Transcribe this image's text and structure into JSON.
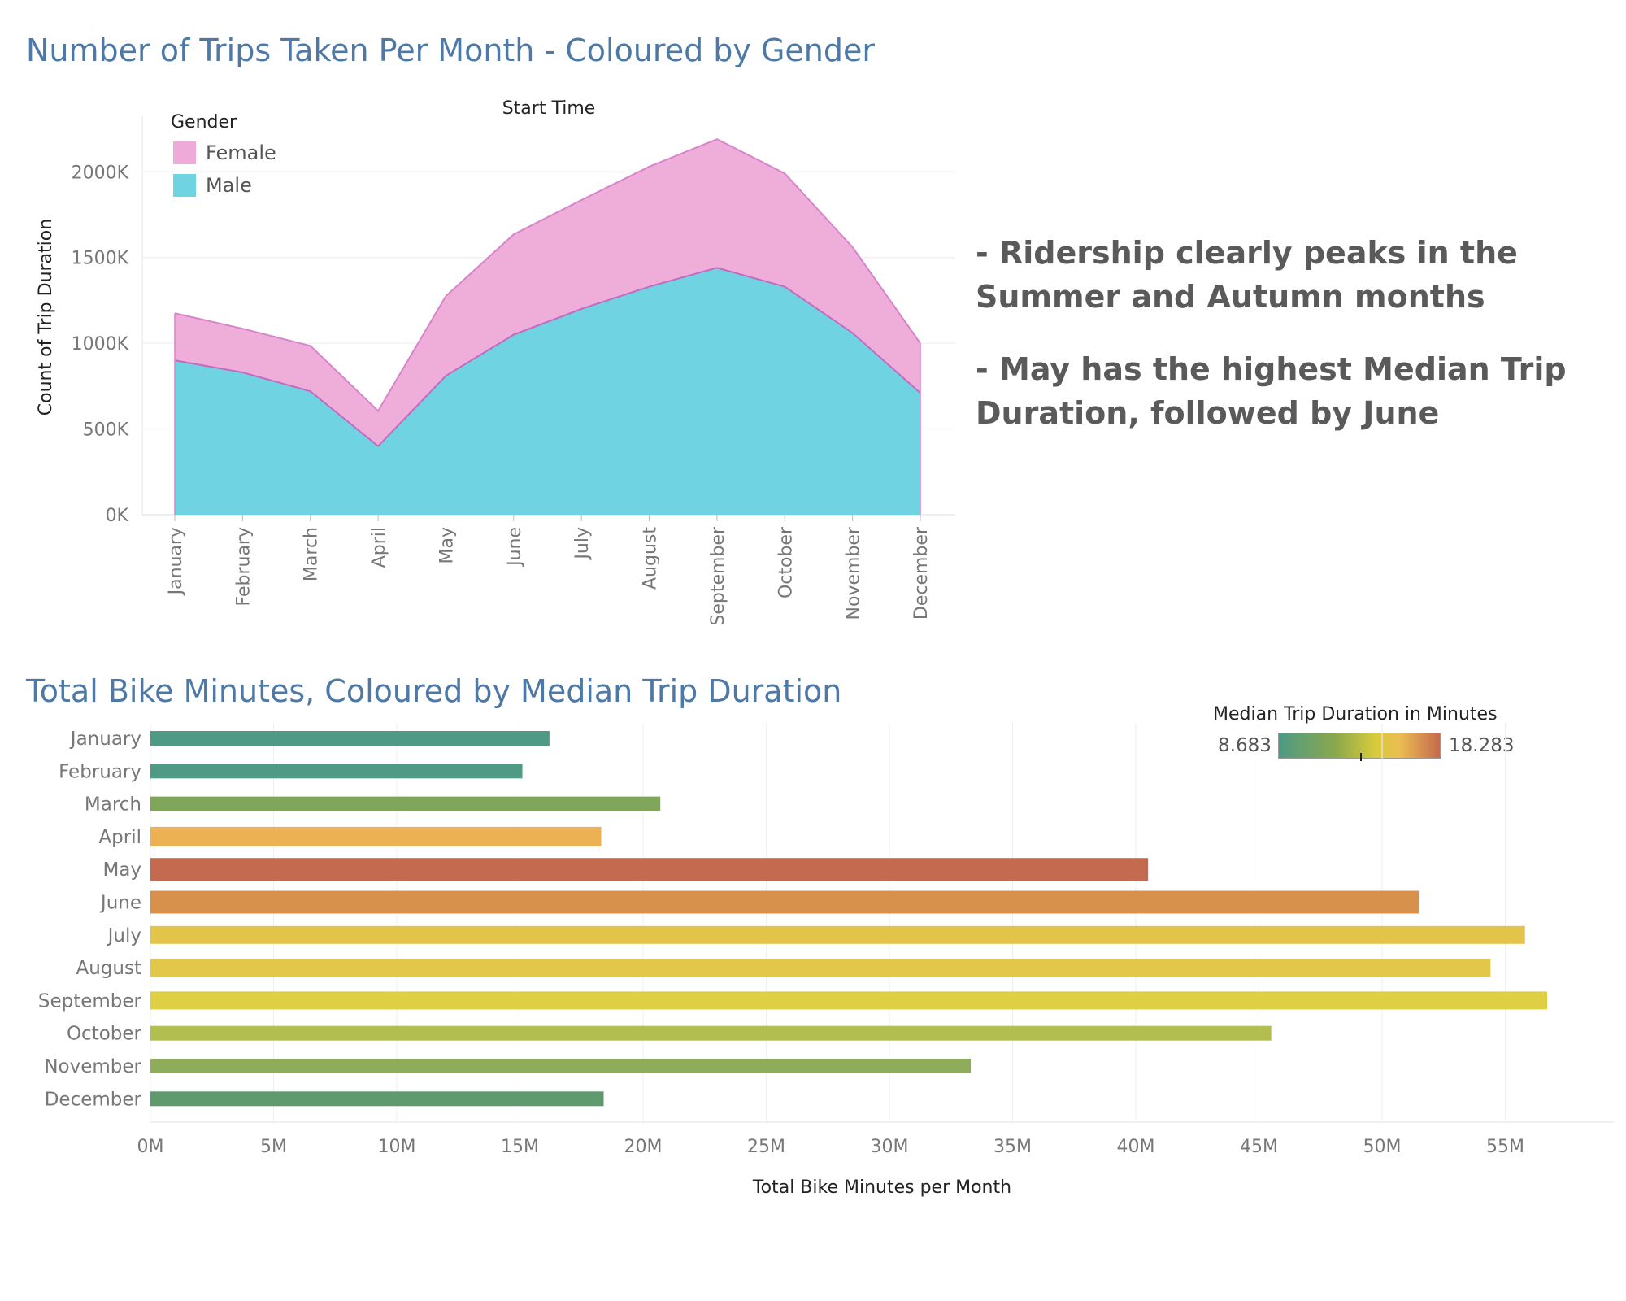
{
  "chart_data": [
    {
      "type": "area",
      "title": "Number of Trips Taken Per Month - Coloured by Gender",
      "xlabel": "Start Time",
      "ylabel": "Count of Trip Duration",
      "categories": [
        "January",
        "February",
        "March",
        "April",
        "May",
        "June",
        "July",
        "August",
        "September",
        "October",
        "November",
        "December"
      ],
      "stacked": true,
      "series": [
        {
          "name": "Male",
          "values": [
            900000,
            830000,
            720000,
            400000,
            810000,
            1050000,
            1200000,
            1330000,
            1440000,
            1330000,
            1060000,
            710000
          ]
        },
        {
          "name": "Female",
          "values": [
            275000,
            255000,
            265000,
            205000,
            465000,
            585000,
            635000,
            700000,
            750000,
            660000,
            500000,
            290000
          ]
        }
      ],
      "legend_title": "Gender",
      "legend": [
        "Female",
        "Male"
      ],
      "legend_position": "top-left",
      "ylim": [
        0,
        2300000
      ],
      "yticks": [
        0,
        500000,
        1000000,
        1500000,
        2000000
      ],
      "ytick_labels": [
        "0K",
        "500K",
        "1000K",
        "1500K",
        "2000K"
      ],
      "grid": true,
      "colors": {
        "Female": "#eeaad8",
        "Male": "#6fd3e1",
        "female_line": "#d884cc",
        "male_line": "#c46bbf"
      }
    },
    {
      "type": "bar",
      "orientation": "horizontal",
      "title": "Total Bike Minutes, Coloured by Median Trip Duration",
      "xlabel": "Total Bike Minutes per Month",
      "ylabel": "",
      "categories": [
        "January",
        "February",
        "March",
        "April",
        "May",
        "June",
        "July",
        "August",
        "September",
        "October",
        "November",
        "December"
      ],
      "values": [
        16.2,
        15.1,
        20.7,
        18.3,
        40.5,
        51.5,
        55.8,
        54.4,
        56.7,
        45.5,
        33.3,
        18.4
      ],
      "unit": "M",
      "bar_colors": [
        "#4e9a85",
        "#4e9a85",
        "#80a65a",
        "#ebb152",
        "#c36a4f",
        "#d8904d",
        "#e2c44a",
        "#e2c74a",
        "#dfcf44",
        "#b2bf50",
        "#8fac5a",
        "#5f9a6f"
      ],
      "xlim": [
        0,
        59
      ],
      "xticks": [
        0,
        5,
        10,
        15,
        20,
        25,
        30,
        35,
        40,
        45,
        50,
        55
      ],
      "xtick_labels": [
        "0M",
        "5M",
        "10M",
        "15M",
        "20M",
        "25M",
        "30M",
        "35M",
        "40M",
        "45M",
        "50M",
        "55M"
      ],
      "grid": true,
      "color_legend": {
        "title": "Median Trip Duration in Minutes",
        "min": "8.683",
        "max": "18.283"
      }
    }
  ],
  "insights": [
    "- Ridership clearly peaks in the Summer and Autumn months",
    "- May has the highest Median Trip Duration, followed by June"
  ]
}
